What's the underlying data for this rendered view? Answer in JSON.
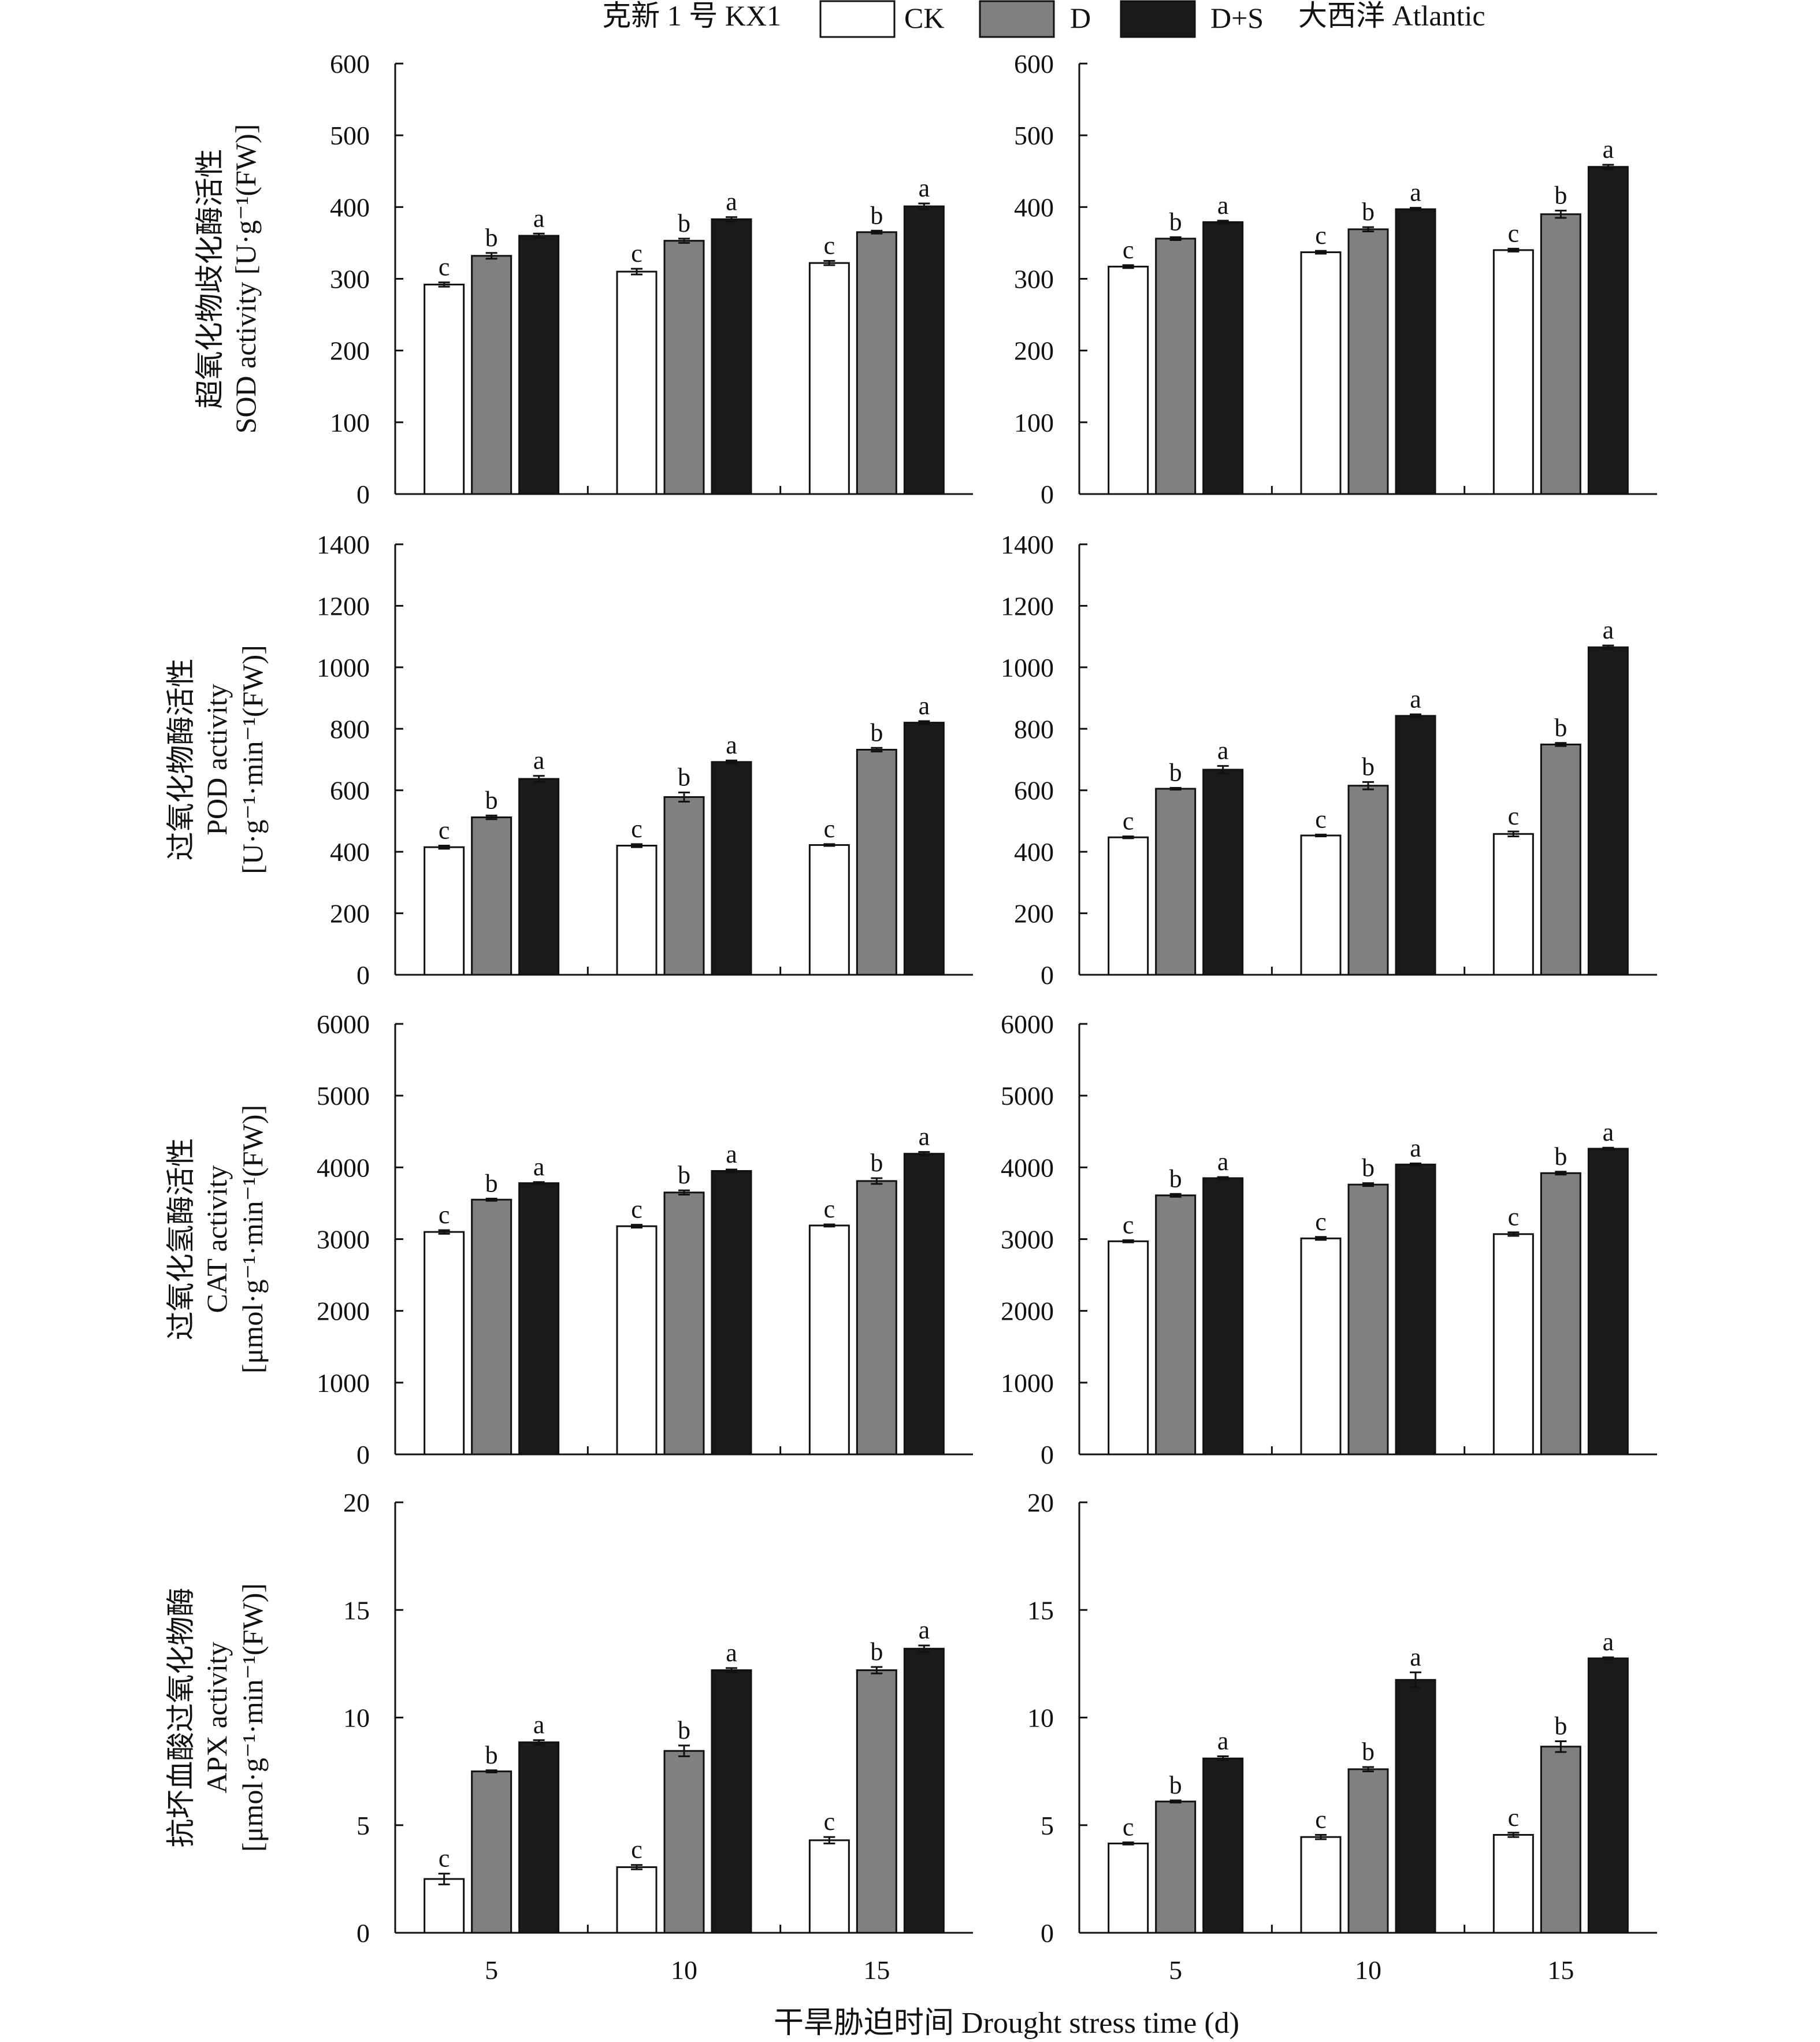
{
  "legend": {
    "left_label": "克新 1 号 KX1",
    "right_label": "大西洋 Atlantic",
    "items": [
      {
        "label": "CK",
        "color": "#ffffff"
      },
      {
        "label": "D",
        "color": "#808080"
      },
      {
        "label": "D+S",
        "color": "#1a1a1a"
      }
    ]
  },
  "x_title": "干旱胁迫时间 Drought stress time (d)",
  "chart_data": [
    {
      "type": "bar",
      "panel": "SOD-KX1",
      "categories": [
        "5",
        "10",
        "15"
      ],
      "ylim": [
        0,
        600
      ],
      "yticks": [
        0,
        100,
        200,
        300,
        400,
        500,
        600
      ],
      "ylabel": [
        "超氧化物歧化酶活性",
        "SOD activity [U·g⁻¹(FW)]"
      ],
      "series": [
        {
          "name": "CK",
          "values": [
            292,
            310,
            322
          ],
          "errors": [
            3,
            4,
            3
          ],
          "letters": [
            "c",
            "c",
            "c"
          ]
        },
        {
          "name": "D",
          "values": [
            332,
            353,
            365
          ],
          "errors": [
            4,
            3,
            2
          ],
          "letters": [
            "b",
            "b",
            "b"
          ]
        },
        {
          "name": "D+S",
          "values": [
            360,
            383,
            401
          ],
          "errors": [
            3,
            3,
            4
          ],
          "letters": [
            "a",
            "a",
            "a"
          ]
        }
      ]
    },
    {
      "type": "bar",
      "panel": "SOD-Atlantic",
      "categories": [
        "5",
        "10",
        "15"
      ],
      "ylim": [
        0,
        600
      ],
      "yticks": [
        0,
        100,
        200,
        300,
        400,
        500,
        600
      ],
      "ylabel": [],
      "series": [
        {
          "name": "CK",
          "values": [
            317,
            337,
            340
          ],
          "errors": [
            2,
            2,
            2
          ],
          "letters": [
            "c",
            "c",
            "c"
          ]
        },
        {
          "name": "D",
          "values": [
            356,
            369,
            390
          ],
          "errors": [
            2,
            3,
            5
          ],
          "letters": [
            "b",
            "b",
            "b"
          ]
        },
        {
          "name": "D+S",
          "values": [
            379,
            397,
            456
          ],
          "errors": [
            2,
            2,
            3
          ],
          "letters": [
            "a",
            "a",
            "a"
          ]
        }
      ]
    },
    {
      "type": "bar",
      "panel": "POD-KX1",
      "categories": [
        "5",
        "10",
        "15"
      ],
      "ylim": [
        0,
        1400
      ],
      "yticks": [
        0,
        200,
        400,
        600,
        800,
        1000,
        1200,
        1400
      ],
      "ylabel": [
        "过氧化物酶活性",
        "POD activity",
        "[U·g⁻¹·min⁻¹(FW)]"
      ],
      "series": [
        {
          "name": "CK",
          "values": [
            415,
            420,
            422
          ],
          "errors": [
            5,
            5,
            3
          ],
          "letters": [
            "c",
            "c",
            "c"
          ]
        },
        {
          "name": "D",
          "values": [
            512,
            578,
            732
          ],
          "errors": [
            6,
            15,
            6
          ],
          "letters": [
            "b",
            "b",
            "b"
          ]
        },
        {
          "name": "D+S",
          "values": [
            637,
            692,
            820
          ],
          "errors": [
            10,
            5,
            5
          ],
          "letters": [
            "a",
            "a",
            "a"
          ]
        }
      ]
    },
    {
      "type": "bar",
      "panel": "POD-Atlantic",
      "categories": [
        "5",
        "10",
        "15"
      ],
      "ylim": [
        0,
        1400
      ],
      "yticks": [
        0,
        200,
        400,
        600,
        800,
        1000,
        1200,
        1400
      ],
      "ylabel": [],
      "series": [
        {
          "name": "CK",
          "values": [
            447,
            453,
            458
          ],
          "errors": [
            3,
            3,
            8
          ],
          "letters": [
            "c",
            "c",
            "c"
          ]
        },
        {
          "name": "D",
          "values": [
            605,
            615,
            749
          ],
          "errors": [
            3,
            12,
            5
          ],
          "letters": [
            "b",
            "b",
            "b"
          ]
        },
        {
          "name": "D+S",
          "values": [
            667,
            842,
            1065
          ],
          "errors": [
            12,
            5,
            6
          ],
          "letters": [
            "a",
            "a",
            "a"
          ]
        }
      ]
    },
    {
      "type": "bar",
      "panel": "CAT-KX1",
      "categories": [
        "5",
        "10",
        "15"
      ],
      "ylim": [
        0,
        6000
      ],
      "yticks": [
        0,
        1000,
        2000,
        3000,
        4000,
        5000,
        6000
      ],
      "ylabel": [
        "过氧化氢酶活性",
        "CAT activity",
        "[μmol·g⁻¹·min⁻¹(FW)]"
      ],
      "series": [
        {
          "name": "CK",
          "values": [
            3100,
            3180,
            3190
          ],
          "errors": [
            25,
            20,
            15
          ],
          "letters": [
            "c",
            "c",
            "c"
          ]
        },
        {
          "name": "D",
          "values": [
            3550,
            3650,
            3810
          ],
          "errors": [
            15,
            30,
            40
          ],
          "letters": [
            "b",
            "b",
            "b"
          ]
        },
        {
          "name": "D+S",
          "values": [
            3780,
            3950,
            4190
          ],
          "errors": [
            15,
            20,
            25
          ],
          "letters": [
            "a",
            "a",
            "a"
          ]
        }
      ]
    },
    {
      "type": "bar",
      "panel": "CAT-Atlantic",
      "categories": [
        "5",
        "10",
        "15"
      ],
      "ylim": [
        0,
        6000
      ],
      "yticks": [
        0,
        1000,
        2000,
        3000,
        4000,
        5000,
        6000
      ],
      "ylabel": [],
      "series": [
        {
          "name": "CK",
          "values": [
            2970,
            3010,
            3070
          ],
          "errors": [
            15,
            20,
            25
          ],
          "letters": [
            "c",
            "c",
            "c"
          ]
        },
        {
          "name": "D",
          "values": [
            3610,
            3760,
            3920
          ],
          "errors": [
            20,
            20,
            20
          ],
          "letters": [
            "b",
            "b",
            "b"
          ]
        },
        {
          "name": "D+S",
          "values": [
            3850,
            4040,
            4260
          ],
          "errors": [
            15,
            15,
            15
          ],
          "letters": [
            "a",
            "a",
            "a"
          ]
        }
      ]
    },
    {
      "type": "bar",
      "panel": "APX-KX1",
      "categories": [
        "5",
        "10",
        "15"
      ],
      "ylim": [
        0,
        20
      ],
      "yticks": [
        0,
        5,
        10,
        15,
        20
      ],
      "ylabel": [
        "抗坏血酸过氧化物酶",
        "APX activity",
        "[μmol·g⁻¹·min⁻¹(FW)]"
      ],
      "series": [
        {
          "name": "CK",
          "values": [
            2.5,
            3.05,
            4.3
          ],
          "errors": [
            0.25,
            0.1,
            0.15
          ],
          "letters": [
            "c",
            "c",
            "c"
          ]
        },
        {
          "name": "D",
          "values": [
            7.5,
            8.45,
            12.2
          ],
          "errors": [
            0.05,
            0.25,
            0.15
          ],
          "letters": [
            "b",
            "b",
            "b"
          ]
        },
        {
          "name": "D+S",
          "values": [
            8.85,
            12.2,
            13.2
          ],
          "errors": [
            0.1,
            0.1,
            0.15
          ],
          "letters": [
            "a",
            "a",
            "a"
          ]
        }
      ]
    },
    {
      "type": "bar",
      "panel": "APX-Atlantic",
      "categories": [
        "5",
        "10",
        "15"
      ],
      "ylim": [
        0,
        20
      ],
      "yticks": [
        0,
        5,
        10,
        15,
        20
      ],
      "ylabel": [],
      "series": [
        {
          "name": "CK",
          "values": [
            4.15,
            4.45,
            4.55
          ],
          "errors": [
            0.05,
            0.1,
            0.1
          ],
          "letters": [
            "c",
            "c",
            "c"
          ]
        },
        {
          "name": "D",
          "values": [
            6.1,
            7.6,
            8.65
          ],
          "errors": [
            0.05,
            0.1,
            0.25
          ],
          "letters": [
            "b",
            "b",
            "b"
          ]
        },
        {
          "name": "D+S",
          "values": [
            8.1,
            11.75,
            12.75
          ],
          "errors": [
            0.1,
            0.35,
            0.05
          ],
          "letters": [
            "a",
            "a",
            "a"
          ]
        }
      ]
    }
  ]
}
